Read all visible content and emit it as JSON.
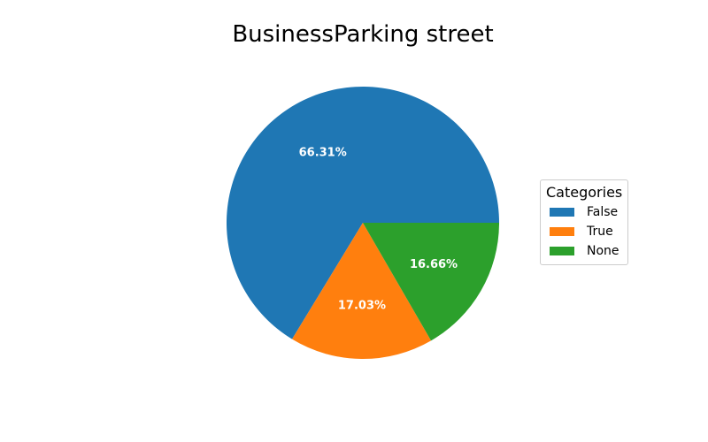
{
  "chart_data": {
    "type": "pie",
    "title": "BusinessParking street",
    "legend_title": "Categories",
    "legend_position": "right",
    "slices": [
      {
        "label": "False",
        "value": 66.31,
        "text": "66.31%",
        "color": "#1f77b4"
      },
      {
        "label": "True",
        "value": 17.03,
        "text": "17.03%",
        "color": "#ff7f0e"
      },
      {
        "label": "None",
        "value": 16.66,
        "text": "16.66%",
        "color": "#2ca02c"
      }
    ]
  }
}
